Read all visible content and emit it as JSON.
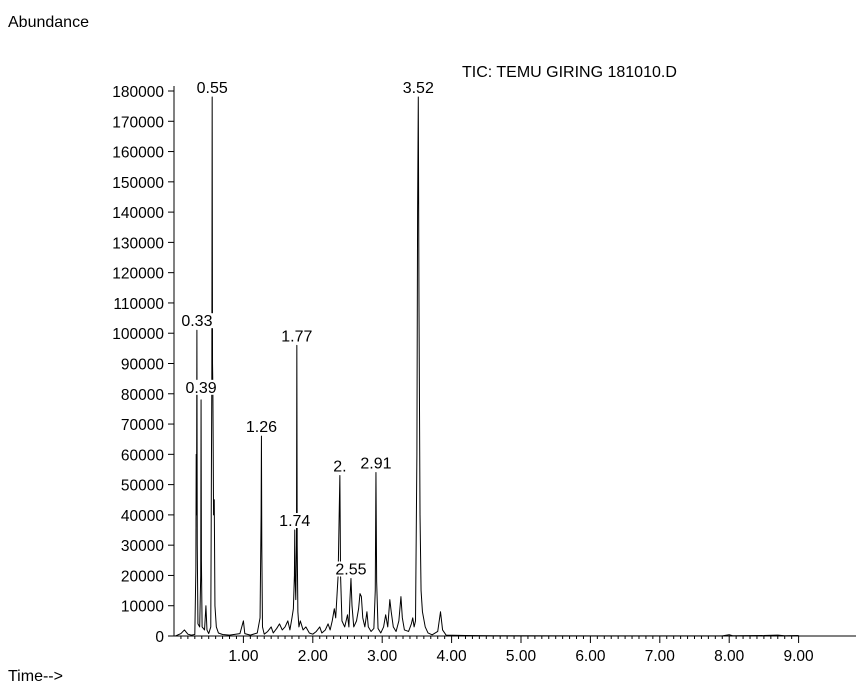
{
  "chart_data": {
    "type": "line",
    "title": "TIC: TEMU GIRING 181010.D",
    "ylabel": "Abundance",
    "xlabel": "Time-->",
    "x_tick_labels": [
      "1.00",
      "2.00",
      "3.00",
      "4.00",
      "5.00",
      "6.00",
      "7.00",
      "8.00",
      "9.00"
    ],
    "y_tick_labels": [
      "0",
      "10000",
      "20000",
      "30000",
      "40000",
      "50000",
      "60000",
      "70000",
      "80000",
      "90000",
      "100000",
      "110000",
      "120000",
      "130000",
      "140000",
      "150000",
      "160000",
      "170000",
      "180000"
    ],
    "xlim": [
      0.0,
      9.0
    ],
    "ylim": [
      0,
      180000
    ],
    "grid": false,
    "peak_labels": [
      {
        "text": "0.55",
        "x": 0.55,
        "y": 178000
      },
      {
        "text": "3.52",
        "x": 3.52,
        "y": 178000
      },
      {
        "text": "0.33",
        "x": 0.33,
        "y": 101000
      },
      {
        "text": "1.77",
        "x": 1.77,
        "y": 96000
      },
      {
        "text": "0.39",
        "x": 0.39,
        "y": 79000
      },
      {
        "text": "1.26",
        "x": 1.26,
        "y": 66000
      },
      {
        "text": "2.",
        "x": 2.39,
        "y": 53000
      },
      {
        "text": "2.91",
        "x": 2.91,
        "y": 54000
      },
      {
        "text": "1.74",
        "x": 1.74,
        "y": 35000
      },
      {
        "text": "2.55",
        "x": 2.55,
        "y": 19000
      }
    ],
    "series": [
      {
        "points": [
          [
            0.02,
            0
          ],
          [
            0.1,
            800
          ],
          [
            0.15,
            2000
          ],
          [
            0.2,
            600
          ],
          [
            0.25,
            300
          ],
          [
            0.3,
            500
          ],
          [
            0.315,
            22000
          ],
          [
            0.32,
            60000
          ],
          [
            0.325,
            40000
          ],
          [
            0.33,
            101000
          ],
          [
            0.335,
            30000
          ],
          [
            0.345,
            4000
          ],
          [
            0.37,
            3000
          ],
          [
            0.385,
            20000
          ],
          [
            0.39,
            78000
          ],
          [
            0.395,
            25000
          ],
          [
            0.405,
            3000
          ],
          [
            0.44,
            2000
          ],
          [
            0.46,
            10000
          ],
          [
            0.475,
            2000
          ],
          [
            0.5,
            800
          ],
          [
            0.53,
            3000
          ],
          [
            0.54,
            60000
          ],
          [
            0.545,
            84000
          ],
          [
            0.55,
            178000
          ],
          [
            0.555,
            90000
          ],
          [
            0.56,
            82000
          ],
          [
            0.57,
            40000
          ],
          [
            0.58,
            45000
          ],
          [
            0.59,
            10000
          ],
          [
            0.61,
            3000
          ],
          [
            0.64,
            1000
          ],
          [
            0.7,
            500
          ],
          [
            0.8,
            300
          ],
          [
            0.95,
            800
          ],
          [
            1.0,
            5000
          ],
          [
            1.02,
            800
          ],
          [
            1.1,
            300
          ],
          [
            1.2,
            1000
          ],
          [
            1.24,
            6000
          ],
          [
            1.255,
            40000
          ],
          [
            1.26,
            66000
          ],
          [
            1.265,
            30000
          ],
          [
            1.275,
            3000
          ],
          [
            1.3,
            600
          ],
          [
            1.35,
            1500
          ],
          [
            1.4,
            3000
          ],
          [
            1.43,
            1000
          ],
          [
            1.48,
            2500
          ],
          [
            1.52,
            4000
          ],
          [
            1.56,
            2000
          ],
          [
            1.6,
            3000
          ],
          [
            1.64,
            5000
          ],
          [
            1.67,
            2000
          ],
          [
            1.7,
            6000
          ],
          [
            1.72,
            9000
          ],
          [
            1.735,
            20000
          ],
          [
            1.74,
            35000
          ],
          [
            1.745,
            20000
          ],
          [
            1.755,
            12000
          ],
          [
            1.765,
            30000
          ],
          [
            1.77,
            96000
          ],
          [
            1.775,
            30000
          ],
          [
            1.785,
            8000
          ],
          [
            1.8,
            3000
          ],
          [
            1.82,
            5000
          ],
          [
            1.86,
            2000
          ],
          [
            1.9,
            3000
          ],
          [
            1.95,
            1000
          ],
          [
            2.0,
            600
          ],
          [
            2.05,
            1500
          ],
          [
            2.1,
            3000
          ],
          [
            2.13,
            1000
          ],
          [
            2.18,
            2000
          ],
          [
            2.22,
            4000
          ],
          [
            2.25,
            2000
          ],
          [
            2.28,
            5000
          ],
          [
            2.31,
            9000
          ],
          [
            2.33,
            6000
          ],
          [
            2.365,
            20000
          ],
          [
            2.38,
            40000
          ],
          [
            2.39,
            53000
          ],
          [
            2.4,
            20000
          ],
          [
            2.42,
            5000
          ],
          [
            2.46,
            3000
          ],
          [
            2.5,
            7000
          ],
          [
            2.52,
            3000
          ],
          [
            2.535,
            12000
          ],
          [
            2.55,
            19000
          ],
          [
            2.565,
            10000
          ],
          [
            2.59,
            3000
          ],
          [
            2.63,
            5000
          ],
          [
            2.66,
            9000
          ],
          [
            2.68,
            14000
          ],
          [
            2.7,
            13000
          ],
          [
            2.72,
            6000
          ],
          [
            2.75,
            3000
          ],
          [
            2.78,
            8000
          ],
          [
            2.8,
            3000
          ],
          [
            2.84,
            1500
          ],
          [
            2.88,
            2500
          ],
          [
            2.9,
            15000
          ],
          [
            2.91,
            54000
          ],
          [
            2.92,
            18000
          ],
          [
            2.94,
            2500
          ],
          [
            2.98,
            1000
          ],
          [
            3.02,
            3000
          ],
          [
            3.05,
            7000
          ],
          [
            3.08,
            3000
          ],
          [
            3.11,
            12000
          ],
          [
            3.13,
            8000
          ],
          [
            3.16,
            3000
          ],
          [
            3.2,
            1500
          ],
          [
            3.24,
            5000
          ],
          [
            3.27,
            13000
          ],
          [
            3.29,
            6000
          ],
          [
            3.32,
            2000
          ],
          [
            3.38,
            1500
          ],
          [
            3.42,
            4000
          ],
          [
            3.44,
            6000
          ],
          [
            3.46,
            3000
          ],
          [
            3.48,
            5000
          ],
          [
            3.5,
            60000
          ],
          [
            3.51,
            140000
          ],
          [
            3.52,
            178000
          ],
          [
            3.53,
            110000
          ],
          [
            3.545,
            40000
          ],
          [
            3.56,
            15000
          ],
          [
            3.58,
            8000
          ],
          [
            3.62,
            3000
          ],
          [
            3.66,
            1000
          ],
          [
            3.72,
            400
          ],
          [
            3.8,
            1500
          ],
          [
            3.84,
            8000
          ],
          [
            3.87,
            2000
          ],
          [
            3.92,
            300
          ],
          [
            4.2,
            150
          ],
          [
            4.6,
            100
          ],
          [
            5.0,
            80
          ],
          [
            6.0,
            60
          ],
          [
            7.0,
            50
          ],
          [
            7.9,
            60
          ],
          [
            8.0,
            400
          ],
          [
            8.05,
            80
          ],
          [
            8.5,
            150
          ],
          [
            8.7,
            300
          ],
          [
            8.8,
            100
          ],
          [
            9.0,
            150
          ]
        ]
      }
    ]
  }
}
